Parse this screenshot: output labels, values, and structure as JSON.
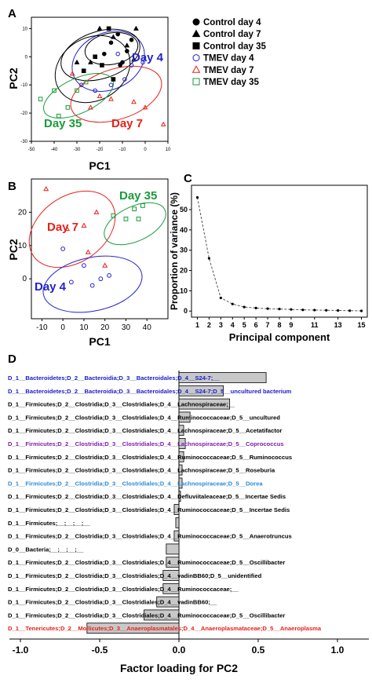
{
  "panel_labels": {
    "a": "A",
    "b": "B",
    "c": "C",
    "d": "D"
  },
  "colors": {
    "control": "#000000",
    "day4": "#2222cc",
    "day7": "#e8201a",
    "day35": "#1a9a3a",
    "blue_text": "#1a1acc",
    "purple_text": "#7a1fa8",
    "cyan_text": "#2a8ad8",
    "red_text": "#e8201a",
    "bar_fill": "#c8c8c8"
  },
  "chart_data": [
    {
      "id": "A",
      "type": "scatter",
      "xlabel": "PC1",
      "ylabel": "PC2",
      "xlim": [
        -50,
        10
      ],
      "ylim": [
        -30,
        14
      ],
      "xticks": [
        "-50",
        "-40",
        "-30",
        "-20",
        "-10",
        "0",
        "10"
      ],
      "yticks": [
        "10",
        "0",
        "-10",
        "-20",
        "-30"
      ],
      "legend": [
        {
          "label": "Control day 4",
          "marker": "filled-circle"
        },
        {
          "label": "Control day 7",
          "marker": "filled-triangle"
        },
        {
          "label": "Control day 35",
          "marker": "filled-square"
        },
        {
          "label": "TMEV day 4",
          "marker": "open-circle"
        },
        {
          "label": "TMEV day 7",
          "marker": "open-triangle"
        },
        {
          "label": "TMEV day 35",
          "marker": "open-square"
        }
      ],
      "annotations": [
        "Day 4",
        "Day 7",
        "Day 35"
      ],
      "series": [
        {
          "name": "Control day 4",
          "points": [
            [
              -12,
              8
            ],
            [
              -8,
              2
            ],
            [
              -15,
              5
            ],
            [
              -6,
              6
            ],
            [
              -10,
              -2
            ],
            [
              -18,
              1
            ],
            [
              -11,
              -3
            ]
          ]
        },
        {
          "name": "Control day 7",
          "points": [
            [
              -20,
              10
            ],
            [
              -4,
              10
            ],
            [
              -14,
              7
            ],
            [
              -30,
              -2
            ],
            [
              -24,
              -2
            ],
            [
              -8,
              4
            ],
            [
              -5,
              -1
            ]
          ]
        },
        {
          "name": "Control day 35",
          "points": [
            [
              -16,
              10
            ],
            [
              -27,
              -5
            ],
            [
              -14,
              -8
            ],
            [
              -22,
              0
            ],
            [
              -19,
              -3
            ]
          ]
        },
        {
          "name": "TMEV day 4",
          "points": [
            [
              -28,
              -10
            ],
            [
              -9,
              -8
            ],
            [
              -1,
              -2
            ],
            [
              -12,
              1
            ],
            [
              -6,
              -3
            ],
            [
              -22,
              -12
            ],
            [
              -15,
              -10
            ]
          ]
        },
        {
          "name": "TMEV day 7",
          "points": [
            [
              -24,
              -18
            ],
            [
              -5,
              -16
            ],
            [
              8,
              -24
            ],
            [
              -15,
              -15
            ],
            [
              0,
              -18
            ],
            [
              -32,
              -6
            ],
            [
              -20,
              -14
            ]
          ]
        },
        {
          "name": "TMEV day 35",
          "points": [
            [
              -40,
              -12
            ],
            [
              -30,
              -12
            ],
            [
              -34,
              -18
            ],
            [
              -46,
              -15
            ],
            [
              -26,
              -9
            ],
            [
              -38,
              -21
            ]
          ]
        }
      ]
    },
    {
      "id": "B",
      "type": "scatter",
      "xlabel": "PC1",
      "ylabel": "PC2",
      "xlim": [
        -15,
        50
      ],
      "ylim": [
        -12,
        30
      ],
      "xticks": [
        "-10",
        "0",
        "10",
        "20",
        "30",
        "40"
      ],
      "yticks": [
        "0",
        "10",
        "20"
      ],
      "annotations": [
        "Day 35",
        "Day 7",
        "Day 4"
      ],
      "series": [
        {
          "name": "TMEV day 4",
          "points": [
            [
              0,
              9
            ],
            [
              10,
              4
            ],
            [
              18,
              0
            ],
            [
              22,
              1
            ],
            [
              14,
              -2
            ],
            [
              4,
              -1
            ]
          ]
        },
        {
          "name": "TMEV day 7",
          "points": [
            [
              -8,
              27
            ],
            [
              10,
              16
            ],
            [
              12,
              8
            ],
            [
              20,
              4
            ],
            [
              16,
              20
            ],
            [
              2,
              15
            ]
          ]
        },
        {
          "name": "TMEV day 35",
          "points": [
            [
              24,
              19
            ],
            [
              30,
              18
            ],
            [
              34,
              21
            ],
            [
              38,
              22
            ],
            [
              36,
              18
            ]
          ]
        }
      ]
    },
    {
      "id": "C",
      "type": "line",
      "xlabel": "Principal component",
      "ylabel": "Proportion of variance (%)",
      "xlim": [
        0.5,
        15.5
      ],
      "ylim": [
        -3,
        62
      ],
      "xticks": [
        "1",
        "2",
        "3",
        "4",
        "5",
        "6",
        "7",
        "8",
        "9",
        "11",
        "13",
        "15"
      ],
      "yticks": [
        "0",
        "10",
        "20",
        "30",
        "40",
        "50"
      ],
      "x": [
        1,
        2,
        3,
        4,
        5,
        6,
        7,
        8,
        9,
        10,
        11,
        12,
        13,
        14,
        15
      ],
      "values": [
        56,
        26,
        6.5,
        3.5,
        2,
        1.5,
        1.2,
        1,
        0.8,
        0.6,
        0.5,
        0.4,
        0.3,
        0.2,
        0.1
      ]
    },
    {
      "id": "D",
      "type": "bar",
      "xlabel": "Factor loading for PC2",
      "xlim": [
        -1.0,
        1.0
      ],
      "xticks": [
        "-1.0",
        "-0.5",
        "0.0",
        "0.5",
        "1.0"
      ],
      "rows": [
        {
          "label": "D_1__Bacteroidetes;D_2__Bacteroidia;D_3__Bacteroidales;D_4__S24-7;__",
          "value": 0.55,
          "color": "blue_text"
        },
        {
          "label": "D_1__Bacteroidetes;D_2__Bacteroidia;D_3__Bacteroidales;D_4__S24-7;D_5__uncultured bacterium",
          "value": 0.28,
          "color": "blue_text"
        },
        {
          "label": "D_1__Firmicutes;D_2__Clostridia;D_3__Clostridiales;D_4__Lachnospiraceae;__",
          "value": 0.32,
          "color": "black"
        },
        {
          "label": "D_1__Firmicutes;D_2__Clostridia;D_3__Clostridiales;D_4__Ruminococcaceae;D_5__uncultured",
          "value": 0.07,
          "color": "black"
        },
        {
          "label": "D_1__Firmicutes;D_2__Clostridia;D_3__Clostridiales;D_4__Lachnospiraceae;D_5__Acetatifactor",
          "value": 0.03,
          "color": "black"
        },
        {
          "label": "D_1__Firmicutes;D_2__Clostridia;D_3__Clostridiales;D_4__Lachnospiraceae;D_5__Coprococcus",
          "value": 0.04,
          "color": "purple_text"
        },
        {
          "label": "D_1__Firmicutes;D_2__Clostridia;D_3__Clostridiales;D_4__Ruminococcaceae;D_5__Ruminococcus",
          "value": 0.03,
          "color": "black"
        },
        {
          "label": "D_1__Firmicutes;D_2__Clostridia;D_3__Clostridiales;D_4__Lachnospiraceae;D_5__Roseburia",
          "value": 0.02,
          "color": "black"
        },
        {
          "label": "D_1__Firmicutes;D_2__Clostridia;D_3__Clostridiales;D_4__Lachnospiraceae;D_5__Dorea",
          "value": 0.02,
          "color": "cyan_text"
        },
        {
          "label": "D_1__Firmicutes;D_2__Clostridia;D_3__Clostridiales;D_4__Defluviitaleaceae;D_5__Incertae Sedis",
          "value": 0.01,
          "color": "black"
        },
        {
          "label": "D_1__Firmicutes;D_2__Clostridia;D_3__Clostridiales;D_4__Ruminococcaceae;D_5__Incertae Sedis",
          "value": -0.03,
          "color": "black"
        },
        {
          "label": "D_1__Firmicutes;__;__;__;__",
          "value": -0.02,
          "color": "black"
        },
        {
          "label": "D_1__Firmicutes;D_2__Clostridia;D_3__Clostridiales;D_4__Ruminococcaceae;D_5__Anaerotruncus",
          "value": -0.03,
          "color": "black"
        },
        {
          "label": "D_0__Bacteria;__;__;__;__",
          "value": -0.08,
          "color": "black"
        },
        {
          "label": "D_1__Firmicutes;D_2__Clostridia;D_3__Clostridiales;D_4__Ruminococcaceae;D_5__Oscillibacter",
          "value": -0.08,
          "color": "black"
        },
        {
          "label": "D_1__Firmicutes;D_2__Clostridia;D_3__Clostridiales;D_4__vadinBB60;D_5__unidentified",
          "value": -0.1,
          "color": "black"
        },
        {
          "label": "D_1__Firmicutes;D_2__Clostridia;D_3__Clostridiales;D_4__Ruminococcaceae;__",
          "value": -0.1,
          "color": "black"
        },
        {
          "label": "D_1__Firmicutes;D_2__Clostridia;D_3__Clostridiales;D_4__vadinBB60;__",
          "value": -0.14,
          "color": "black"
        },
        {
          "label": "D_1__Firmicutes;D_2__Clostridia;D_3__Clostridiales;D_4__Ruminococcaceae;D_5__Oscillibacter",
          "value": -0.22,
          "color": "black"
        },
        {
          "label": "D_1__Tenericutes;D_2__Mollicutes;D_3__Anaeroplasmatales;D_4__Anaeroplasmataceae;D_5__Anaeroplasma",
          "value": -0.58,
          "color": "red_text"
        }
      ]
    }
  ]
}
